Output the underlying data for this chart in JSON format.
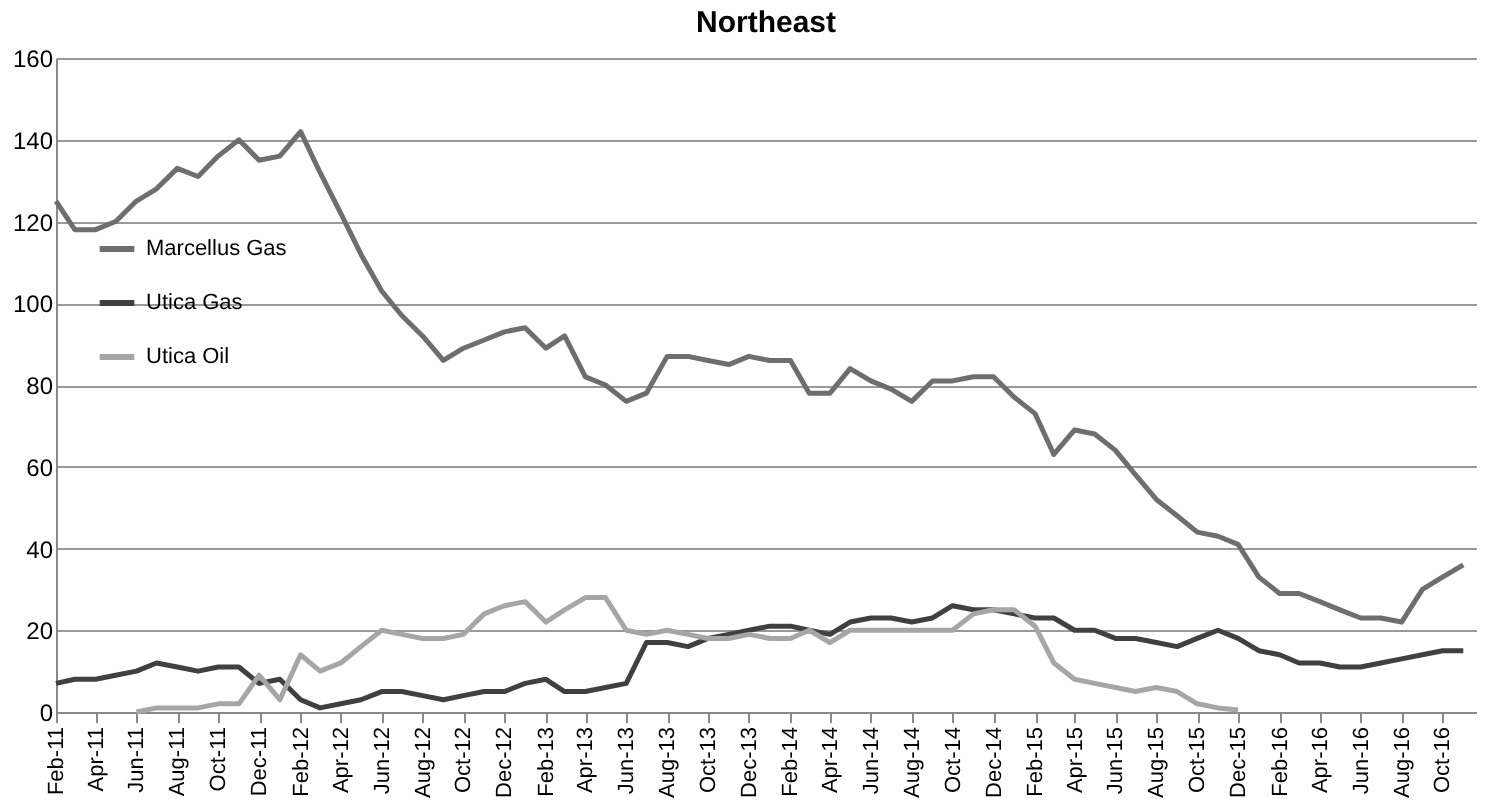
{
  "chart_data": {
    "type": "line",
    "title": "Northeast",
    "x": [
      "2011-02",
      "2011-03",
      "2011-04",
      "2011-05",
      "2011-06",
      "2011-07",
      "2011-08",
      "2011-09",
      "2011-10",
      "2011-11",
      "2011-12",
      "2012-01",
      "2012-02",
      "2012-03",
      "2012-04",
      "2012-05",
      "2012-06",
      "2012-07",
      "2012-08",
      "2012-09",
      "2012-10",
      "2012-11",
      "2012-12",
      "2013-01",
      "2013-02",
      "2013-03",
      "2013-04",
      "2013-05",
      "2013-06",
      "2013-07",
      "2013-08",
      "2013-09",
      "2013-10",
      "2013-11",
      "2013-12",
      "2014-01",
      "2014-02",
      "2014-03",
      "2014-04",
      "2014-05",
      "2014-06",
      "2014-07",
      "2014-08",
      "2014-09",
      "2014-10",
      "2014-11",
      "2014-12",
      "2015-01",
      "2015-02",
      "2015-03",
      "2015-04",
      "2015-05",
      "2015-06",
      "2015-07",
      "2015-08",
      "2015-09",
      "2015-10",
      "2015-11",
      "2015-12",
      "2016-01",
      "2016-02",
      "2016-03",
      "2016-04",
      "2016-05",
      "2016-06",
      "2016-07",
      "2016-08",
      "2016-09",
      "2016-10",
      "2016-11"
    ],
    "series": [
      {
        "name": "Marcellus Gas",
        "color": "#6e6e6e",
        "values": [
          125,
          118,
          118,
          120,
          125,
          128,
          133,
          131,
          136,
          140,
          135,
          136,
          142,
          132,
          122,
          112,
          103,
          97,
          92,
          86,
          89,
          91,
          93,
          94,
          89,
          92,
          82,
          80,
          76,
          78,
          87,
          87,
          86,
          85,
          87,
          86,
          86,
          78,
          78,
          84,
          81,
          79,
          76,
          81,
          81,
          82,
          82,
          77,
          73,
          63,
          69,
          68,
          64,
          58,
          52,
          48,
          44,
          43,
          41,
          33,
          29,
          29,
          27,
          25,
          23,
          23,
          22,
          30,
          33,
          36
        ]
      },
      {
        "name": "Utica Gas",
        "color": "#404040",
        "values": [
          7,
          8,
          8,
          9,
          10,
          12,
          11,
          10,
          11,
          11,
          7,
          8,
          3,
          1,
          2,
          3,
          5,
          5,
          4,
          3,
          4,
          5,
          5,
          7,
          8,
          5,
          5,
          6,
          7,
          17,
          17,
          16,
          18,
          19,
          20,
          21,
          21,
          20,
          19,
          22,
          23,
          23,
          22,
          23,
          26,
          25,
          25,
          24,
          23,
          23,
          20,
          20,
          18,
          18,
          17,
          16,
          18,
          20,
          18,
          15,
          14,
          12,
          12,
          11,
          11,
          12,
          13,
          14,
          15,
          15
        ]
      },
      {
        "name": "Utica Oil",
        "color": "#a6a6a6",
        "values": [
          null,
          null,
          null,
          null,
          0,
          1,
          1,
          1,
          2,
          2,
          9,
          3,
          14,
          10,
          12,
          16,
          20,
          19,
          18,
          18,
          19,
          24,
          26,
          27,
          22,
          25,
          28,
          28,
          20,
          19,
          20,
          19,
          18,
          18,
          19,
          18,
          18,
          20,
          17,
          20,
          20,
          20,
          20,
          20,
          20,
          24,
          25,
          25,
          21,
          12,
          8,
          7,
          6,
          5,
          6,
          5,
          2,
          1,
          0.5,
          null,
          null,
          null,
          null,
          null,
          null,
          null,
          null,
          null,
          null,
          null
        ]
      }
    ],
    "xlim": [
      "2011-02",
      "2016-11-20"
    ],
    "xticks": [
      {
        "value": "2011-02",
        "label": "Feb-11"
      },
      {
        "value": "2011-04",
        "label": "Apr-11"
      },
      {
        "value": "2011-06",
        "label": "Jun-11"
      },
      {
        "value": "2011-08",
        "label": "Aug-11"
      },
      {
        "value": "2011-10",
        "label": "Oct-11"
      },
      {
        "value": "2011-12",
        "label": "Dec-11"
      },
      {
        "value": "2012-02",
        "label": "Feb-12"
      },
      {
        "value": "2012-04",
        "label": "Apr-12"
      },
      {
        "value": "2012-06",
        "label": "Jun-12"
      },
      {
        "value": "2012-08",
        "label": "Aug-12"
      },
      {
        "value": "2012-10",
        "label": "Oct-12"
      },
      {
        "value": "2012-12",
        "label": "Dec-12"
      },
      {
        "value": "2013-02",
        "label": "Feb-13"
      },
      {
        "value": "2013-04",
        "label": "Apr-13"
      },
      {
        "value": "2013-06",
        "label": "Jun-13"
      },
      {
        "value": "2013-08",
        "label": "Aug-13"
      },
      {
        "value": "2013-10",
        "label": "Oct-13"
      },
      {
        "value": "2013-12",
        "label": "Dec-13"
      },
      {
        "value": "2014-02",
        "label": "Feb-14"
      },
      {
        "value": "2014-04",
        "label": "Apr-14"
      },
      {
        "value": "2014-06",
        "label": "Jun-14"
      },
      {
        "value": "2014-08",
        "label": "Aug-14"
      },
      {
        "value": "2014-10",
        "label": "Oct-14"
      },
      {
        "value": "2014-12",
        "label": "Dec-14"
      },
      {
        "value": "2015-02",
        "label": "Feb-15"
      },
      {
        "value": "2015-04",
        "label": "Apr-15"
      },
      {
        "value": "2015-06",
        "label": "Jun-15"
      },
      {
        "value": "2015-08",
        "label": "Aug-15"
      },
      {
        "value": "2015-10",
        "label": "Oct-15"
      },
      {
        "value": "2015-12",
        "label": "Dec-15"
      },
      {
        "value": "2016-02",
        "label": "Feb-16"
      },
      {
        "value": "2016-04",
        "label": "Apr-16"
      },
      {
        "value": "2016-06",
        "label": "Jun-16"
      },
      {
        "value": "2016-08",
        "label": "Aug-16"
      },
      {
        "value": "2016-10",
        "label": "Oct-16"
      }
    ],
    "ylim": [
      0,
      160
    ],
    "yticks": [
      0,
      20,
      40,
      60,
      80,
      100,
      120,
      140,
      160
    ],
    "grid": "y",
    "legend": "left",
    "marker": "none",
    "line_style": "solid"
  }
}
